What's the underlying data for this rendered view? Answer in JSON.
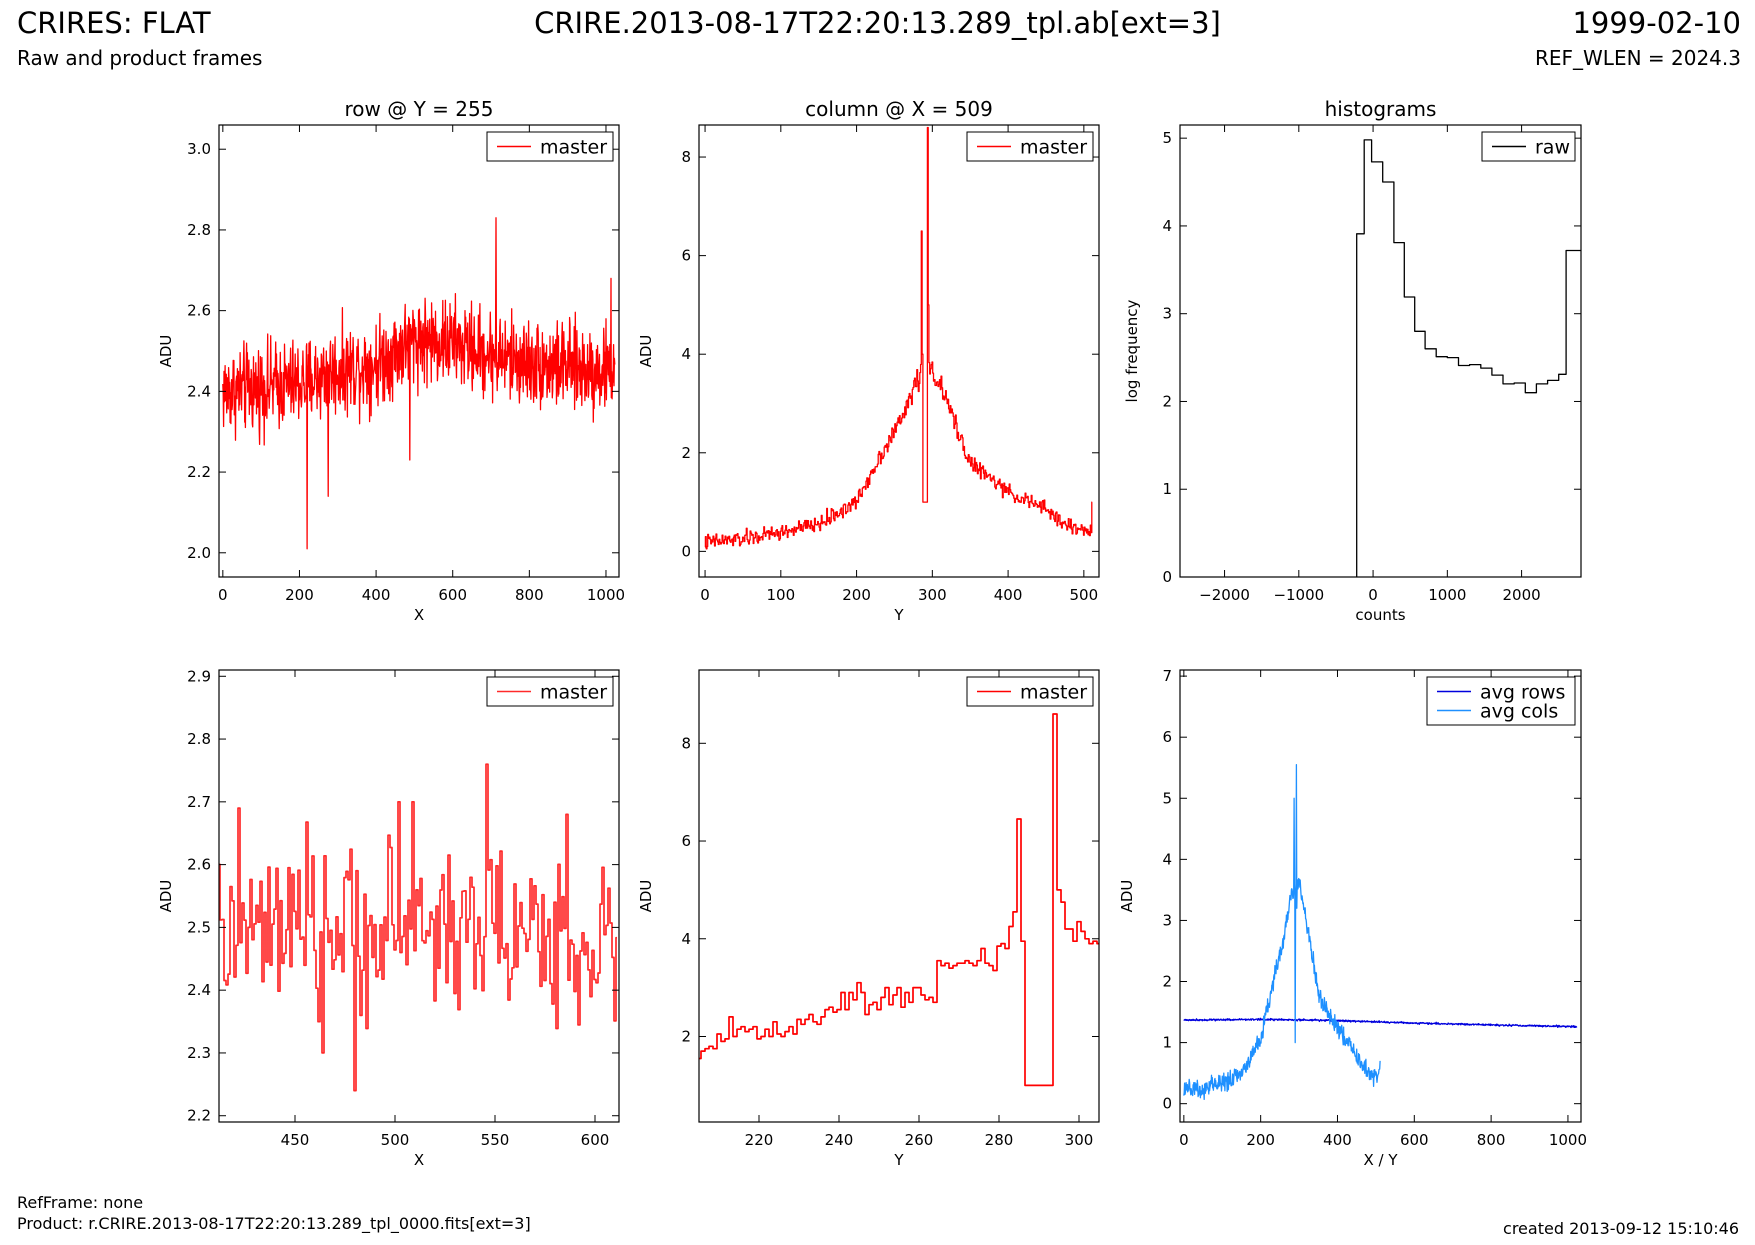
{
  "header": {
    "title_left": "CRIRES: FLAT",
    "subtitle_left": "Raw and product frames",
    "title_center": "CRIRE.2013-08-17T22:20:13.289_tpl.ab[ext=3]",
    "title_right": "1999-02-10",
    "subtitle_right": "REF_WLEN = 2024.3"
  },
  "footer": {
    "ref_frame": "RefFrame: none",
    "product": "Product: r.CRIRE.2013-08-17T22:20:13.289_tpl_0000.fits[ext=3]",
    "created": "created 2013-09-12 15:10:46"
  },
  "chart_data": [
    {
      "id": "row",
      "type": "line",
      "title": "row @ Y = 255",
      "xlabel": "X",
      "ylabel": "ADU",
      "xlim": [
        -10,
        1034
      ],
      "ylim": [
        1.94,
        3.06
      ],
      "xticks": [
        0,
        200,
        400,
        600,
        800,
        1000
      ],
      "yticks": [
        2.0,
        2.2,
        2.4,
        2.6,
        2.8,
        3.0
      ],
      "ytick_labels": [
        "2.0",
        "2.2",
        "2.4",
        "2.6",
        "2.8",
        "3.0"
      ],
      "legend": "top-right",
      "series": [
        {
          "name": "master",
          "color": "#ff0000",
          "style": "noise",
          "n": 1024,
          "x_start": 0,
          "x_step": 1,
          "base_x": [
            0,
            100,
            200,
            300,
            400,
            500,
            600,
            700,
            800,
            900,
            1023
          ],
          "base_y": [
            2.4,
            2.41,
            2.42,
            2.45,
            2.47,
            2.53,
            2.52,
            2.49,
            2.47,
            2.46,
            2.45
          ],
          "amplitude": 0.085,
          "spikes": [
            [
              220,
              2.01
            ],
            [
              275,
              2.14
            ],
            [
              713,
              2.83
            ],
            [
              1013,
              2.68
            ],
            [
              488,
              2.23
            ]
          ]
        }
      ]
    },
    {
      "id": "column",
      "type": "line",
      "title": "column @ X = 509",
      "xlabel": "Y",
      "ylabel": "ADU",
      "xlim": [
        -8,
        520
      ],
      "ylim": [
        -0.52,
        8.65
      ],
      "xticks": [
        0,
        100,
        200,
        300,
        400,
        500
      ],
      "yticks": [
        0,
        2,
        4,
        6,
        8
      ],
      "ytick_labels": [
        "0",
        "2",
        "4",
        "6",
        "8"
      ],
      "legend": "top-right",
      "series": [
        {
          "name": "master",
          "color": "#ff0000",
          "style": "step-noise",
          "n": 512,
          "x_start": 0,
          "x_step": 1,
          "base_x": [
            0,
            50,
            100,
            150,
            200,
            230,
            260,
            280,
            300,
            320,
            350,
            400,
            450,
            480,
            505,
            511
          ],
          "base_y": [
            0.18,
            0.25,
            0.38,
            0.55,
            1.0,
            1.9,
            2.7,
            3.5,
            3.7,
            3.0,
            1.8,
            1.2,
            0.85,
            0.5,
            0.42,
            0.45
          ],
          "amplitude": 0.13,
          "spikes": [
            [
              286,
              6.5
            ],
            [
              287,
              4.0
            ],
            [
              288,
              1.0
            ],
            [
              289,
              1.0
            ],
            [
              290,
              1.0
            ],
            [
              291,
              1.0
            ],
            [
              292,
              1.0
            ],
            [
              293,
              1.0
            ],
            [
              294,
              8.6
            ],
            [
              295,
              5.0
            ],
            [
              511,
              1.0
            ]
          ]
        }
      ]
    },
    {
      "id": "histograms",
      "type": "line",
      "title": "histograms",
      "xlabel": "counts",
      "ylabel": "log frequency",
      "xlim": [
        -2600,
        2800
      ],
      "ylim": [
        0,
        5.15
      ],
      "xticks": [
        -2000,
        -1000,
        0,
        1000,
        2000
      ],
      "xtick_labels": [
        "−2000",
        "−1000",
        "0",
        "1000",
        "2000"
      ],
      "yticks": [
        0,
        1,
        2,
        3,
        4,
        5
      ],
      "ytick_labels": [
        "0",
        "1",
        "2",
        "3",
        "4",
        "5"
      ],
      "legend": "top-right",
      "series": [
        {
          "name": "raw",
          "color": "#000000",
          "style": "hist",
          "edges": [
            -220,
            -120,
            -20,
            130,
            280,
            420,
            560,
            700,
            850,
            1000,
            1150,
            1300,
            1450,
            1600,
            1750,
            1900,
            2050,
            2200,
            2350,
            2500,
            2600,
            2800
          ],
          "values": [
            3.91,
            4.98,
            4.73,
            4.5,
            3.81,
            3.19,
            2.8,
            2.6,
            2.51,
            2.5,
            2.41,
            2.42,
            2.38,
            2.3,
            2.2,
            2.21,
            2.1,
            2.2,
            2.24,
            2.31,
            3.72
          ],
          "start_y": 0
        }
      ]
    },
    {
      "id": "row-zoom",
      "type": "line",
      "title": "",
      "xlabel": "X",
      "ylabel": "ADU",
      "xlim": [
        412,
        612
      ],
      "ylim": [
        2.19,
        2.91
      ],
      "xticks": [
        450,
        500,
        550,
        600
      ],
      "yticks": [
        2.2,
        2.3,
        2.4,
        2.5,
        2.6,
        2.7,
        2.8,
        2.9
      ],
      "ytick_labels": [
        "2.2",
        "2.3",
        "2.4",
        "2.5",
        "2.6",
        "2.7",
        "2.8",
        "2.9"
      ],
      "legend": "top-right",
      "series": [
        {
          "name": "master",
          "color": "#ff2a2a",
          "style": "step-noise",
          "n": 200,
          "x_start": 412,
          "x_step": 1,
          "base_x": [
            412,
            450,
            500,
            550,
            612
          ],
          "base_y": [
            2.48,
            2.49,
            2.5,
            2.5,
            2.46
          ],
          "amplitude": 0.085,
          "spikes": [
            [
              422,
              2.69
            ],
            [
              480,
              2.24
            ],
            [
              546,
              2.76
            ],
            [
              464,
              2.3
            ],
            [
              502,
              2.7
            ],
            [
              509,
              2.7
            ],
            [
              586,
              2.68
            ]
          ]
        }
      ]
    },
    {
      "id": "column-zoom",
      "type": "line",
      "title": "",
      "xlabel": "Y",
      "ylabel": "ADU",
      "xlim": [
        205,
        305
      ],
      "ylim": [
        0.25,
        9.5
      ],
      "xticks": [
        220,
        240,
        260,
        280,
        300
      ],
      "yticks": [
        2,
        4,
        6,
        8
      ],
      "ytick_labels": [
        "2",
        "4",
        "6",
        "8"
      ],
      "legend": "top-right",
      "series": [
        {
          "name": "master",
          "color": "#ff0000",
          "style": "step",
          "x": [
            205,
            206,
            207,
            208,
            209,
            210,
            211,
            212,
            213,
            214,
            215,
            216,
            217,
            218,
            219,
            220,
            221,
            222,
            223,
            224,
            225,
            226,
            227,
            228,
            229,
            230,
            231,
            232,
            233,
            234,
            235,
            236,
            237,
            238,
            239,
            240,
            241,
            242,
            243,
            244,
            245,
            246,
            247,
            248,
            249,
            250,
            251,
            252,
            253,
            254,
            255,
            256,
            257,
            258,
            259,
            260,
            261,
            262,
            263,
            264,
            265,
            266,
            267,
            268,
            269,
            270,
            271,
            272,
            273,
            274,
            275,
            276,
            277,
            278,
            279,
            280,
            281,
            282,
            283,
            284,
            285,
            286,
            287,
            288,
            289,
            290,
            291,
            292,
            293,
            294,
            295,
            296,
            297,
            298,
            299,
            300,
            301,
            302,
            303,
            304,
            305
          ],
          "y": [
            1.55,
            1.7,
            1.75,
            1.8,
            1.75,
            2.05,
            1.9,
            1.95,
            2.4,
            2.0,
            2.15,
            2.2,
            2.1,
            2.15,
            2.2,
            1.95,
            2.0,
            2.15,
            2.0,
            2.3,
            2.05,
            2.0,
            2.1,
            2.2,
            2.05,
            2.35,
            2.25,
            2.35,
            2.45,
            2.3,
            2.25,
            2.4,
            2.55,
            2.6,
            2.5,
            2.55,
            2.9,
            2.55,
            2.9,
            2.75,
            3.1,
            2.9,
            2.45,
            2.65,
            2.7,
            2.55,
            2.8,
            3.0,
            2.65,
            2.85,
            3.0,
            2.6,
            2.9,
            2.7,
            3.0,
            3.0,
            2.85,
            2.75,
            2.8,
            2.7,
            3.55,
            3.45,
            3.5,
            3.4,
            3.45,
            3.5,
            3.5,
            3.55,
            3.5,
            3.45,
            3.55,
            3.8,
            3.5,
            3.45,
            3.35,
            3.85,
            3.9,
            3.8,
            4.25,
            4.55,
            6.45,
            3.95,
            1.0,
            1.0,
            1.0,
            1.0,
            1.0,
            1.0,
            1.0,
            8.6,
            5.0,
            4.75,
            4.2,
            4.2,
            3.95,
            4.35,
            4.15,
            4.0,
            3.9,
            3.95,
            3.9
          ]
        }
      ]
    },
    {
      "id": "averages",
      "type": "line",
      "title": "",
      "xlabel": "X / Y",
      "ylabel": "ADU",
      "xlim": [
        -10,
        1034
      ],
      "ylim": [
        -0.3,
        7.1
      ],
      "xticks": [
        0,
        200,
        400,
        600,
        800,
        1000
      ],
      "yticks": [
        0,
        1,
        2,
        3,
        4,
        5,
        6,
        7
      ],
      "ytick_labels": [
        "0",
        "1",
        "2",
        "3",
        "4",
        "5",
        "6",
        "7"
      ],
      "legend": "top-right",
      "series": [
        {
          "name": "avg rows",
          "color": "#0000dd",
          "style": "noise",
          "n": 1024,
          "x_start": 0,
          "x_step": 1,
          "base_x": [
            0,
            200,
            400,
            600,
            800,
            1023
          ],
          "base_y": [
            1.37,
            1.38,
            1.36,
            1.32,
            1.29,
            1.26
          ],
          "amplitude": 0.012,
          "spikes": []
        },
        {
          "name": "avg cols",
          "color": "#1e90ff",
          "style": "noise",
          "n": 512,
          "x_start": 0,
          "x_step": 1,
          "base_x": [
            0,
            50,
            100,
            150,
            200,
            230,
            260,
            280,
            300,
            320,
            350,
            400,
            450,
            480,
            505,
            511
          ],
          "base_y": [
            0.21,
            0.27,
            0.35,
            0.5,
            1.05,
            1.9,
            2.7,
            3.45,
            3.6,
            3.0,
            1.8,
            1.25,
            0.8,
            0.5,
            0.42,
            0.6
          ],
          "amplitude": 0.12,
          "spikes": [
            [
              287,
              5.0
            ],
            [
              290,
              1.0
            ],
            [
              293,
              5.55
            ],
            [
              294,
              3.2
            ],
            [
              511,
              0.7
            ]
          ]
        }
      ]
    }
  ]
}
